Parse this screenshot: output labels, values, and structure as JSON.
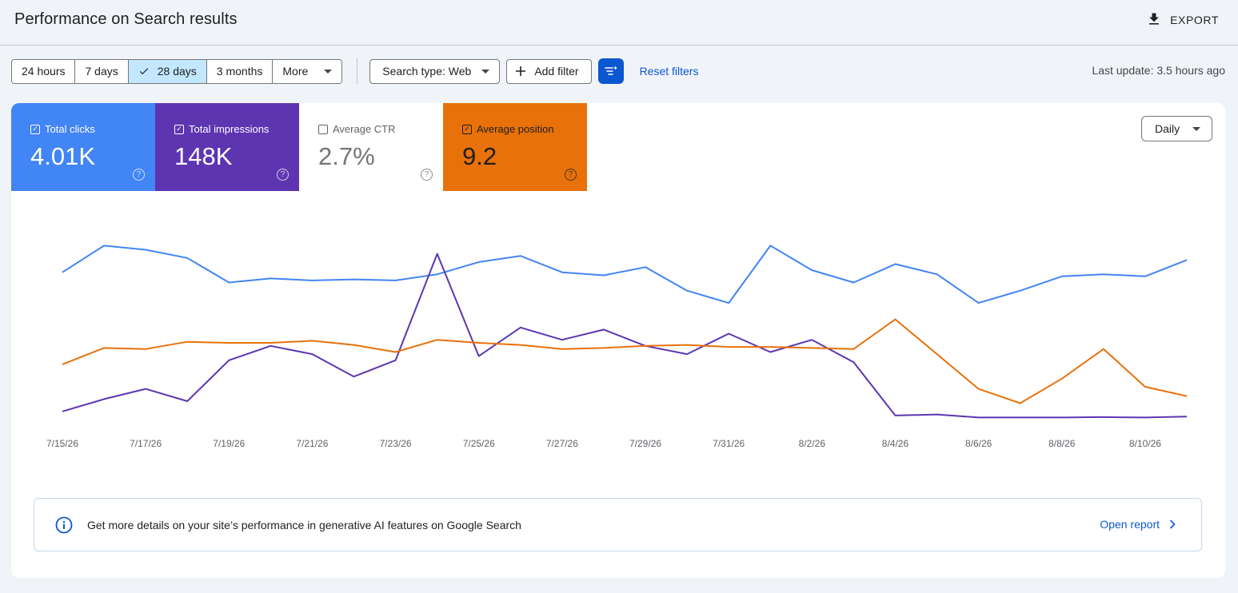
{
  "header": {
    "title": "Performance on Search results",
    "export_label": "EXPORT"
  },
  "toolbar": {
    "date_ranges": [
      {
        "label": "24 hours",
        "active": false
      },
      {
        "label": "7 days",
        "active": false
      },
      {
        "label": "28 days",
        "active": true
      },
      {
        "label": "3 months",
        "active": false
      },
      {
        "label": "More",
        "active": false
      }
    ],
    "search_type_label": "Search type: Web",
    "add_filter_label": "Add filter",
    "reset_filters_label": "Reset filters",
    "last_update": "Last update: 3.5 hours ago"
  },
  "metrics": [
    {
      "label": "Total clicks",
      "value": "4.01K",
      "checked": true,
      "color": "#4285f4"
    },
    {
      "label": "Total impressions",
      "value": "148K",
      "checked": true,
      "color": "#5e35b1"
    },
    {
      "label": "Average CTR",
      "value": "2.7%",
      "checked": false,
      "color": "#ffffff"
    },
    {
      "label": "Average position",
      "value": "9.2",
      "checked": true,
      "color": "#e8710a"
    }
  ],
  "granularity": {
    "selected": "Daily"
  },
  "chart_data": {
    "type": "line",
    "x": [
      "7/15/26",
      "7/16/26",
      "7/17/26",
      "7/18/26",
      "7/19/26",
      "7/20/26",
      "7/21/26",
      "7/22/26",
      "7/23/26",
      "7/24/26",
      "7/25/26",
      "7/26/26",
      "7/27/26",
      "7/28/26",
      "7/29/26",
      "7/30/26",
      "7/31/26",
      "8/1/26",
      "8/2/26",
      "8/3/26",
      "8/4/26",
      "8/5/26",
      "8/6/26",
      "8/7/26",
      "8/8/26",
      "8/9/26",
      "8/10/26",
      "8/11/26"
    ],
    "x_tick_labels": [
      "7/15/26",
      "7/17/26",
      "7/19/26",
      "7/21/26",
      "7/23/26",
      "7/25/26",
      "7/27/26",
      "7/29/26",
      "7/31/26",
      "8/2/26",
      "8/4/26",
      "8/6/26",
      "8/8/26",
      "8/10/26"
    ],
    "grid": false,
    "series": [
      {
        "name": "Total clicks",
        "color": "#4285f4",
        "values": [
          0.72,
          0.85,
          0.83,
          0.79,
          0.67,
          0.69,
          0.68,
          0.685,
          0.68,
          0.71,
          0.77,
          0.8,
          0.72,
          0.705,
          0.745,
          0.63,
          0.57,
          0.85,
          0.73,
          0.67,
          0.76,
          0.71,
          0.57,
          0.63,
          0.7,
          0.71,
          0.7,
          0.78
        ]
      },
      {
        "name": "Total impressions",
        "color": "#5e35b1",
        "values": [
          0.04,
          0.1,
          0.15,
          0.09,
          0.29,
          0.36,
          0.32,
          0.21,
          0.29,
          0.81,
          0.31,
          0.45,
          0.39,
          0.44,
          0.36,
          0.32,
          0.42,
          0.33,
          0.39,
          0.28,
          0.02,
          0.025,
          0.01,
          0.01,
          0.01,
          0.012,
          0.01,
          0.015
        ]
      },
      {
        "name": "Average position",
        "color": "#e8710a",
        "values": [
          0.27,
          0.35,
          0.345,
          0.38,
          0.375,
          0.375,
          0.385,
          0.365,
          0.33,
          0.39,
          0.375,
          0.365,
          0.345,
          0.35,
          0.36,
          0.365,
          0.355,
          0.355,
          0.35,
          0.345,
          0.49,
          0.32,
          0.15,
          0.08,
          0.2,
          0.345,
          0.16,
          0.115
        ]
      }
    ]
  },
  "banner": {
    "text": "Get more details on your site’s performance in generative AI features on Google Search",
    "link_label": "Open report"
  }
}
